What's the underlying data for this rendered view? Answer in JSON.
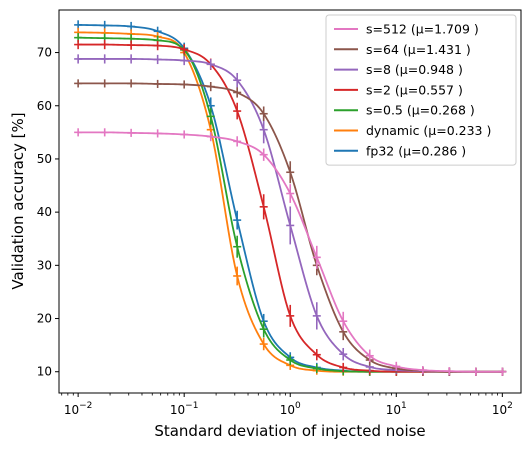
{
  "chart_data": {
    "type": "line",
    "xlabel": "Standard deviation of injected noise",
    "ylabel": "Validation accuracy [%]",
    "xscale": "log",
    "xlim": [
      0.0066,
      150
    ],
    "ylim": [
      6,
      78
    ],
    "x_ticks": [
      0.01,
      0.1,
      1,
      10,
      100
    ],
    "x_tick_labels": [
      {
        "base": "10",
        "exp": "−2"
      },
      {
        "base": "10",
        "exp": "−1"
      },
      {
        "base": "10",
        "exp": "0"
      },
      {
        "base": "10",
        "exp": "1"
      },
      {
        "base": "10",
        "exp": "2"
      }
    ],
    "y_ticks": [
      10,
      20,
      30,
      40,
      50,
      60,
      70
    ],
    "y_tick_labels": [
      "10",
      "20",
      "30",
      "40",
      "50",
      "60",
      "70"
    ],
    "legend_position": "top-right",
    "x": [
      0.01,
      0.0178,
      0.0316,
      0.0562,
      0.1,
      0.178,
      0.316,
      0.562,
      1,
      1.78,
      3.16,
      5.62,
      10,
      17.8,
      31.6,
      56.2,
      100
    ],
    "series": [
      {
        "name": "s=512 (µ=1.709 )",
        "color": "#e377c2",
        "values": [
          55.0,
          55.0,
          54.9,
          54.8,
          54.6,
          54.2,
          53.3,
          50.8,
          43.5,
          31.5,
          19.5,
          13.0,
          11.0,
          10.3,
          10.1,
          10.0,
          10.0
        ],
        "errors": [
          0.2,
          0.2,
          0.2,
          0.2,
          0.2,
          0.3,
          0.4,
          0.6,
          1.2,
          1.6,
          1.2,
          0.6,
          0.3,
          0.2,
          0.2,
          0.2,
          0.2
        ]
      },
      {
        "name": "s=64 (µ=1.431 )",
        "color": "#8c564b",
        "values": [
          64.2,
          64.2,
          64.2,
          64.1,
          64.0,
          63.6,
          62.5,
          58.5,
          47.5,
          30.0,
          17.5,
          12.2,
          10.6,
          10.2,
          10.0,
          10.0,
          10.0
        ],
        "errors": [
          0.2,
          0.2,
          0.2,
          0.2,
          0.2,
          0.3,
          0.4,
          0.8,
          1.5,
          1.3,
          1.0,
          0.5,
          0.3,
          0.2,
          0.2,
          0.2,
          0.2
        ]
      },
      {
        "name": "s=8 (µ=0.948 )",
        "color": "#9467bd",
        "values": [
          68.8,
          68.8,
          68.8,
          68.7,
          68.5,
          67.8,
          64.8,
          55.5,
          37.5,
          20.5,
          13.3,
          10.9,
          10.3,
          10.1,
          10.0,
          10.0,
          10.0
        ],
        "errors": [
          0.3,
          0.3,
          0.3,
          0.3,
          0.3,
          0.4,
          0.8,
          2.0,
          3.0,
          2.0,
          0.6,
          0.3,
          0.2,
          0.2,
          0.2,
          0.2,
          0.2
        ]
      },
      {
        "name": "s=2 (µ=0.557 )",
        "color": "#d62728",
        "values": [
          71.5,
          71.5,
          71.4,
          71.3,
          70.6,
          67.8,
          59.0,
          41.0,
          20.5,
          13.2,
          10.8,
          10.2,
          10.0,
          10.0,
          10.0,
          10.0,
          10.0
        ],
        "errors": [
          0.3,
          0.3,
          0.3,
          0.3,
          0.4,
          0.5,
          1.0,
          1.8,
          1.5,
          0.5,
          0.3,
          0.2,
          0.2,
          0.2,
          0.2,
          0.2,
          0.2
        ]
      },
      {
        "name": "s=0.5 (µ=0.268 )",
        "color": "#2ca02c",
        "values": [
          72.8,
          72.7,
          72.6,
          72.3,
          70.5,
          58.0,
          33.5,
          18.0,
          12.2,
          10.6,
          10.1,
          10.0,
          10.0,
          10.0,
          10.0,
          10.0,
          10.0
        ],
        "errors": [
          0.3,
          0.3,
          0.3,
          0.3,
          0.5,
          1.0,
          1.5,
          1.0,
          0.4,
          0.3,
          0.2,
          0.2,
          0.2,
          0.2,
          0.2,
          0.2,
          0.2
        ]
      },
      {
        "name": "dynamic (µ=0.233 )",
        "color": "#ff7f0e",
        "values": [
          73.8,
          73.7,
          73.5,
          73.0,
          70.0,
          55.5,
          28.0,
          15.2,
          11.2,
          10.2,
          10.0,
          10.0,
          10.0,
          10.0,
          10.0,
          10.0,
          10.0
        ],
        "errors": [
          0.3,
          0.3,
          0.3,
          0.3,
          0.5,
          1.0,
          1.2,
          0.6,
          0.3,
          0.2,
          0.2,
          0.2,
          0.2,
          0.2,
          0.2,
          0.2,
          0.2
        ]
      },
      {
        "name": "fp32 (µ=0.286 )",
        "color": "#1f77b4",
        "values": [
          75.2,
          75.1,
          74.9,
          74.0,
          70.8,
          60.0,
          38.5,
          19.5,
          12.7,
          10.8,
          10.2,
          10.0,
          10.0,
          10.0,
          10.0,
          10.0,
          10.0
        ],
        "errors": [
          0.3,
          0.3,
          0.3,
          0.3,
          0.5,
          1.0,
          1.2,
          0.8,
          0.4,
          0.3,
          0.2,
          0.2,
          0.2,
          0.2,
          0.2,
          0.2,
          0.2
        ]
      }
    ]
  }
}
